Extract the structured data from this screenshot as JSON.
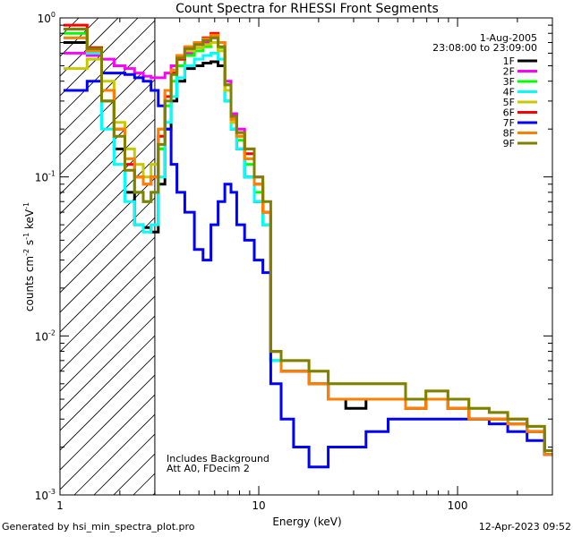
{
  "chart_data": {
    "type": "line",
    "title": "Count Spectra for RHESSI Front Segments",
    "xlabel": "Energy (keV)",
    "ylabel_parts": [
      "counts cm",
      "-2",
      " s",
      "-1",
      " keV",
      "-1"
    ],
    "xscale": "log",
    "yscale": "log",
    "xlim": [
      1,
      300
    ],
    "ylim": [
      0.001,
      1
    ],
    "x_tick_labels": [
      {
        "value": 1,
        "text": "1"
      },
      {
        "value": 10,
        "text": "10"
      },
      {
        "value": 100,
        "text": "100"
      }
    ],
    "y_tick_labels": [
      {
        "value": 0.001,
        "base": "10",
        "exp": "-3"
      },
      {
        "value": 0.01,
        "base": "10",
        "exp": "-2"
      },
      {
        "value": 0.1,
        "base": "10",
        "exp": "-1"
      },
      {
        "value": 1,
        "base": "10",
        "exp": "0"
      }
    ],
    "attenuator_boundary_keV": 3,
    "legend_date": "1-Aug-2005",
    "legend_time": "23:08:00 to 23:09:00",
    "annotations": [
      "Includes Background",
      "Att A0, FDecim 2"
    ],
    "x": [
      1.25,
      1.5,
      1.75,
      2.0,
      2.25,
      2.5,
      2.75,
      3.0,
      3.25,
      3.5,
      3.75,
      4.0,
      4.5,
      5.0,
      5.5,
      6.0,
      6.5,
      7.0,
      7.5,
      8.0,
      9.0,
      10.0,
      11.0,
      12.0,
      14.0,
      16.0,
      20.0,
      25.0,
      30.0,
      40.0,
      50.0,
      60.0,
      80.0,
      100.0,
      130.0,
      160.0,
      200.0,
      250.0,
      300.0
    ],
    "series": [
      {
        "name": "1F",
        "color": "#000000",
        "values": [
          0.7,
          0.6,
          0.3,
          0.15,
          0.08,
          0.05,
          0.048,
          0.045,
          0.09,
          0.2,
          0.3,
          0.4,
          0.48,
          0.5,
          0.52,
          0.53,
          0.5,
          0.3,
          0.2,
          0.15,
          0.1,
          0.07,
          0.05,
          0.007,
          0.006,
          0.006,
          0.005,
          0.004,
          0.0035,
          0.004,
          0.004,
          0.0035,
          0.004,
          0.0035,
          0.003,
          0.003,
          0.0028,
          0.0025,
          0.0018
        ]
      },
      {
        "name": "2F",
        "color": "#ff00ff",
        "values": [
          0.6,
          0.58,
          0.55,
          0.5,
          0.48,
          0.45,
          0.43,
          0.42,
          0.42,
          0.45,
          0.5,
          0.55,
          0.6,
          0.65,
          0.7,
          0.75,
          0.7,
          0.4,
          0.25,
          0.2,
          0.15,
          0.1,
          0.06,
          0.008,
          0.006,
          0.006,
          0.005,
          0.004,
          0.004,
          0.004,
          0.004,
          0.0035,
          0.004,
          0.0035,
          0.003,
          0.003,
          0.003,
          0.0025,
          0.0018
        ]
      },
      {
        "name": "3F",
        "color": "#00ff00",
        "values": [
          0.8,
          0.65,
          0.3,
          0.2,
          0.13,
          0.08,
          0.07,
          0.08,
          0.15,
          0.28,
          0.4,
          0.5,
          0.58,
          0.62,
          0.66,
          0.7,
          0.65,
          0.35,
          0.22,
          0.17,
          0.12,
          0.08,
          0.05,
          0.007,
          0.006,
          0.006,
          0.005,
          0.004,
          0.004,
          0.004,
          0.004,
          0.0035,
          0.004,
          0.0035,
          0.003,
          0.003,
          0.0028,
          0.0025,
          0.0018
        ]
      },
      {
        "name": "4F",
        "color": "#00ffff",
        "values": [
          0.75,
          0.6,
          0.2,
          0.12,
          0.07,
          0.05,
          0.045,
          0.05,
          0.1,
          0.22,
          0.32,
          0.42,
          0.5,
          0.55,
          0.58,
          0.6,
          0.55,
          0.3,
          0.2,
          0.15,
          0.1,
          0.07,
          0.05,
          0.007,
          0.006,
          0.006,
          0.005,
          0.004,
          0.004,
          0.004,
          0.004,
          0.0035,
          0.004,
          0.0035,
          0.003,
          0.003,
          0.0028,
          0.0025,
          0.0018
        ]
      },
      {
        "name": "5F",
        "color": "#c8c800",
        "values": [
          0.48,
          0.55,
          0.4,
          0.22,
          0.15,
          0.12,
          0.1,
          0.12,
          0.2,
          0.35,
          0.45,
          0.55,
          0.62,
          0.65,
          0.68,
          0.7,
          0.62,
          0.35,
          0.22,
          0.18,
          0.13,
          0.09,
          0.06,
          0.008,
          0.007,
          0.007,
          0.006,
          0.005,
          0.005,
          0.005,
          0.005,
          0.004,
          0.0045,
          0.004,
          0.0035,
          0.0033,
          0.003,
          0.0027,
          0.0019
        ]
      },
      {
        "name": "6F",
        "color": "#ff0000",
        "values": [
          0.9,
          0.65,
          0.35,
          0.2,
          0.12,
          0.1,
          0.09,
          0.1,
          0.18,
          0.32,
          0.45,
          0.55,
          0.65,
          0.7,
          0.75,
          0.8,
          0.7,
          0.38,
          0.24,
          0.19,
          0.14,
          0.09,
          0.06,
          0.008,
          0.006,
          0.006,
          0.005,
          0.004,
          0.004,
          0.004,
          0.004,
          0.0035,
          0.004,
          0.0035,
          0.003,
          0.003,
          0.0028,
          0.0025,
          0.0018
        ]
      },
      {
        "name": "7F",
        "color": "#0000ff",
        "values": [
          0.35,
          0.4,
          0.45,
          0.45,
          0.44,
          0.42,
          0.4,
          0.35,
          0.28,
          0.2,
          0.12,
          0.08,
          0.06,
          0.035,
          0.03,
          0.05,
          0.07,
          0.09,
          0.08,
          0.05,
          0.04,
          0.03,
          0.025,
          0.005,
          0.003,
          0.002,
          0.0015,
          0.002,
          0.002,
          0.0025,
          0.003,
          0.003,
          0.003,
          0.003,
          0.003,
          0.0028,
          0.0025,
          0.0022,
          0.0018
        ]
      },
      {
        "name": "8F",
        "color": "#ff8000",
        "values": [
          0.75,
          0.62,
          0.35,
          0.2,
          0.13,
          0.1,
          0.09,
          0.1,
          0.2,
          0.35,
          0.47,
          0.58,
          0.66,
          0.7,
          0.74,
          0.78,
          0.7,
          0.38,
          0.23,
          0.18,
          0.13,
          0.09,
          0.06,
          0.008,
          0.006,
          0.006,
          0.005,
          0.004,
          0.004,
          0.004,
          0.004,
          0.0035,
          0.004,
          0.0035,
          0.003,
          0.003,
          0.0028,
          0.0025,
          0.0018
        ]
      },
      {
        "name": "9F",
        "color": "#808000",
        "values": [
          0.85,
          0.64,
          0.3,
          0.18,
          0.11,
          0.08,
          0.07,
          0.08,
          0.16,
          0.3,
          0.44,
          0.56,
          0.64,
          0.68,
          0.72,
          0.75,
          0.66,
          0.38,
          0.24,
          0.19,
          0.15,
          0.1,
          0.07,
          0.008,
          0.007,
          0.007,
          0.006,
          0.005,
          0.005,
          0.005,
          0.005,
          0.004,
          0.0045,
          0.004,
          0.0035,
          0.0033,
          0.003,
          0.0027,
          0.0019
        ]
      }
    ]
  },
  "footer": {
    "left": "Generated by hsi_min_spectra_plot.pro",
    "right": "12-Apr-2023 09:52"
  }
}
